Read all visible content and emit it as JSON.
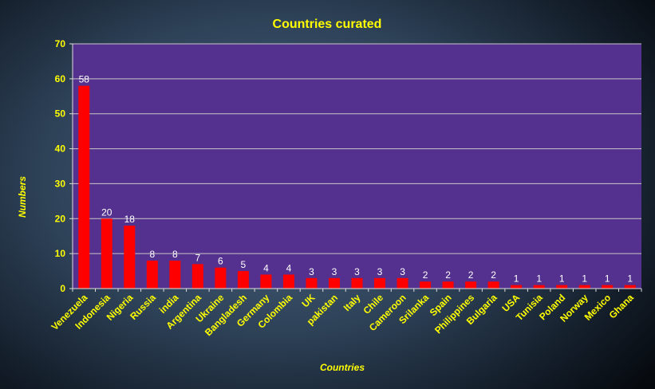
{
  "chart_data": {
    "type": "bar",
    "title": "Countries curated",
    "xlabel": "Countries",
    "ylabel": "Numbers",
    "ylim": [
      0,
      70
    ],
    "yticks": [
      0,
      10,
      20,
      30,
      40,
      50,
      60,
      70
    ],
    "grid": true,
    "legend": "none",
    "categories": [
      "Venezuela",
      "Indonesia",
      "Nigeria",
      "Russia",
      "india",
      "Argentina",
      "Ukraine",
      "Bangladesh",
      "Germany",
      "Colombia",
      "UK",
      "pakistan",
      "Italy",
      "Chile",
      "Cameroon",
      "Srilanka",
      "Spain",
      "Philippines",
      "Bulgaria",
      "USA",
      "Tunisia",
      "Poland",
      "Norway",
      "Mexico",
      "Ghana"
    ],
    "values": [
      58,
      20,
      18,
      8,
      8,
      7,
      6,
      5,
      4,
      4,
      3,
      3,
      3,
      3,
      3,
      2,
      2,
      2,
      2,
      1,
      1,
      1,
      1,
      1,
      1
    ],
    "colors": {
      "plot_background": "#55318f",
      "bar": "#ff0000",
      "text": "#ffff00",
      "data_label": "#ffffff",
      "grid": "#c8c8c8"
    }
  }
}
